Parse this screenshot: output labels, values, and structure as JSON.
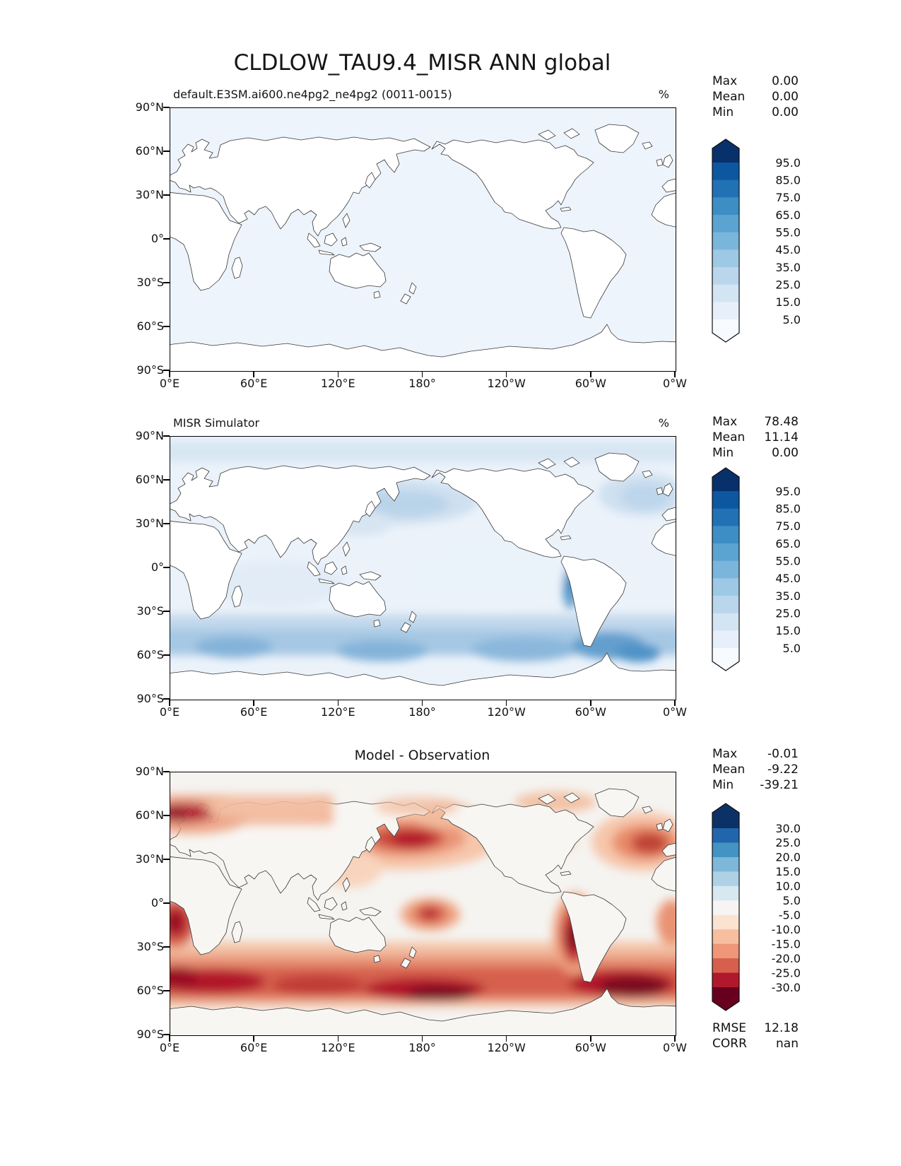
{
  "page_title": "CLDLOW_TAU9.4_MISR ANN global",
  "axes": {
    "x_tick_labels": [
      "0°E",
      "60°E",
      "120°E",
      "180°",
      "120°W",
      "60°W",
      "0°W"
    ],
    "y_tick_labels": [
      "90°N",
      "60°N",
      "30°N",
      "0°",
      "30°S",
      "60°S",
      "90°S"
    ]
  },
  "panels": [
    {
      "subtitle": "default.E3SM.ai600.ne4pg2_ne4pg2 (0011-0015)",
      "units": "%",
      "stats": {
        "max_label": "Max",
        "mean_label": "Mean",
        "min_label": "Min",
        "max": "0.00",
        "mean": "0.00",
        "min": "0.00"
      },
      "colorbar": {
        "tick_labels": [
          "95.0",
          "85.0",
          "75.0",
          "65.0",
          "55.0",
          "45.0",
          "35.0",
          "25.0",
          "15.0",
          "5.0"
        ],
        "colors": [
          "#08306b",
          "#0d57a1",
          "#2171b5",
          "#3d8ec4",
          "#5ba3d0",
          "#7ab6dc",
          "#9dc9e5",
          "#bad6ec",
          "#d3e4f3",
          "#e7effa",
          "#f7fbff"
        ]
      }
    },
    {
      "subtitle": "MISR Simulator",
      "units": "%",
      "stats": {
        "max_label": "Max",
        "mean_label": "Mean",
        "min_label": "Min",
        "max": "78.48",
        "mean": "11.14",
        "min": "0.00"
      },
      "colorbar": {
        "tick_labels": [
          "95.0",
          "85.0",
          "75.0",
          "65.0",
          "55.0",
          "45.0",
          "35.0",
          "25.0",
          "15.0",
          "5.0"
        ],
        "colors": [
          "#08306b",
          "#0d57a1",
          "#2171b5",
          "#3d8ec4",
          "#5ba3d0",
          "#7ab6dc",
          "#9dc9e5",
          "#bad6ec",
          "#d3e4f3",
          "#e7effa",
          "#f7fbff"
        ]
      }
    },
    {
      "subtitle": "Model - Observation",
      "stats": {
        "max_label": "Max",
        "mean_label": "Mean",
        "min_label": "Min",
        "max": "-0.01",
        "mean": "-9.22",
        "min": "-39.21"
      },
      "colorbar": {
        "tick_labels": [
          "30.0",
          "25.0",
          "20.0",
          "15.0",
          "10.0",
          "5.0",
          "-5.0",
          "-10.0",
          "-15.0",
          "-20.0",
          "-25.0",
          "-30.0"
        ],
        "colors": [
          "#0c3166",
          "#2166ac",
          "#4393c3",
          "#7db8d9",
          "#aed1e6",
          "#d7e8f1",
          "#f6f5f3",
          "#fbe3d2",
          "#f7bf9f",
          "#ee9677",
          "#d6604d",
          "#b2182b",
          "#67001f"
        ]
      },
      "metrics": {
        "rmse_label": "RMSE",
        "rmse": "12.18",
        "corr_label": "CORR",
        "corr": "nan"
      }
    }
  ],
  "chart_data": [
    {
      "type": "heatmap",
      "title": "default.E3SM.ai600.ne4pg2_ne4pg2 (0011-0015)",
      "figure_title": "CLDLOW_TAU9.4_MISR ANN global",
      "variable": "CLDLOW_TAU9.4_MISR",
      "season": "ANN",
      "domain": "global",
      "units": "%",
      "projection": "cylindrical equidistant, x 0°E to 0°W (360°), y 90°N to 90°S",
      "contour_levels": [
        5,
        15,
        25,
        35,
        45,
        55,
        65,
        75,
        85,
        95
      ],
      "extend": "both",
      "colormap": "Blues (white to dark navy)",
      "stats": {
        "max": 0.0,
        "mean": 0.0,
        "min": 0.0
      },
      "field_summary": [
        {
          "region": "entire globe",
          "value_pct": "0.00 (blank near-white field, coastlines only)"
        }
      ]
    },
    {
      "type": "heatmap",
      "title": "MISR Simulator",
      "units": "%",
      "projection": "cylindrical equidistant, x 0°E to 0°W (360°), y 90°N to 90°S",
      "contour_levels": [
        5,
        15,
        25,
        35,
        45,
        55,
        65,
        75,
        85,
        95
      ],
      "extend": "both",
      "colormap": "Blues (white to dark navy)",
      "stats": {
        "max": 78.48,
        "mean": 11.14,
        "min": 0.0
      },
      "field_summary": [
        {
          "region": "Southern Ocean 45-65S",
          "value_pct": "25-45"
        },
        {
          "region": "SE Pacific stratocumulus off Chile",
          "value_pct": "35-60"
        },
        {
          "region": "North Pacific 40-60N",
          "value_pct": "15-25"
        },
        {
          "region": "North Atlantic 45-65N",
          "value_pct": "15-25"
        },
        {
          "region": "tropical oceans",
          "value_pct": "5-15"
        },
        {
          "region": "land areas",
          "value_pct": "0-5"
        }
      ]
    },
    {
      "type": "heatmap",
      "title": "Model - Observation",
      "units": "%",
      "projection": "cylindrical equidistant, x 0°E to 0°W (360°), y 90°N to 90°S",
      "contour_levels": [
        -30,
        -25,
        -20,
        -15,
        -10,
        -5,
        5,
        10,
        15,
        20,
        25,
        30
      ],
      "extend": "both",
      "colormap": "RdBu (dark red negative to dark blue positive)",
      "stats": {
        "max": -0.01,
        "mean": -9.22,
        "min": -39.21
      },
      "rmse": 12.18,
      "corr": "nan",
      "field_summary": [
        {
          "region": "Southern Ocean 45-65S band",
          "bias_pct": "-20 to -35"
        },
        {
          "region": "SE Pacific off Chile",
          "bias_pct": "-30 to -39"
        },
        {
          "region": "South Atlantic / S of Africa ~55-65S",
          "bias_pct": "-25 to -35"
        },
        {
          "region": "North Pacific 40-60N incl. Gulf of Alaska",
          "bias_pct": "-15 to -25"
        },
        {
          "region": "North Atlantic 45-60N",
          "bias_pct": "-15 to -25"
        },
        {
          "region": "Nordic seas / Scandinavia / NW Russia",
          "bias_pct": "-15 to -30"
        },
        {
          "region": "SE Atlantic off Angola ~15-25S",
          "bias_pct": "-20 to -30"
        },
        {
          "region": "central equatorial Pacific near dateline",
          "bias_pct": "-10 to -20"
        },
        {
          "region": "tropics and most land areas",
          "bias_pct": "-5 to 0 (near neutral)"
        }
      ]
    }
  ]
}
